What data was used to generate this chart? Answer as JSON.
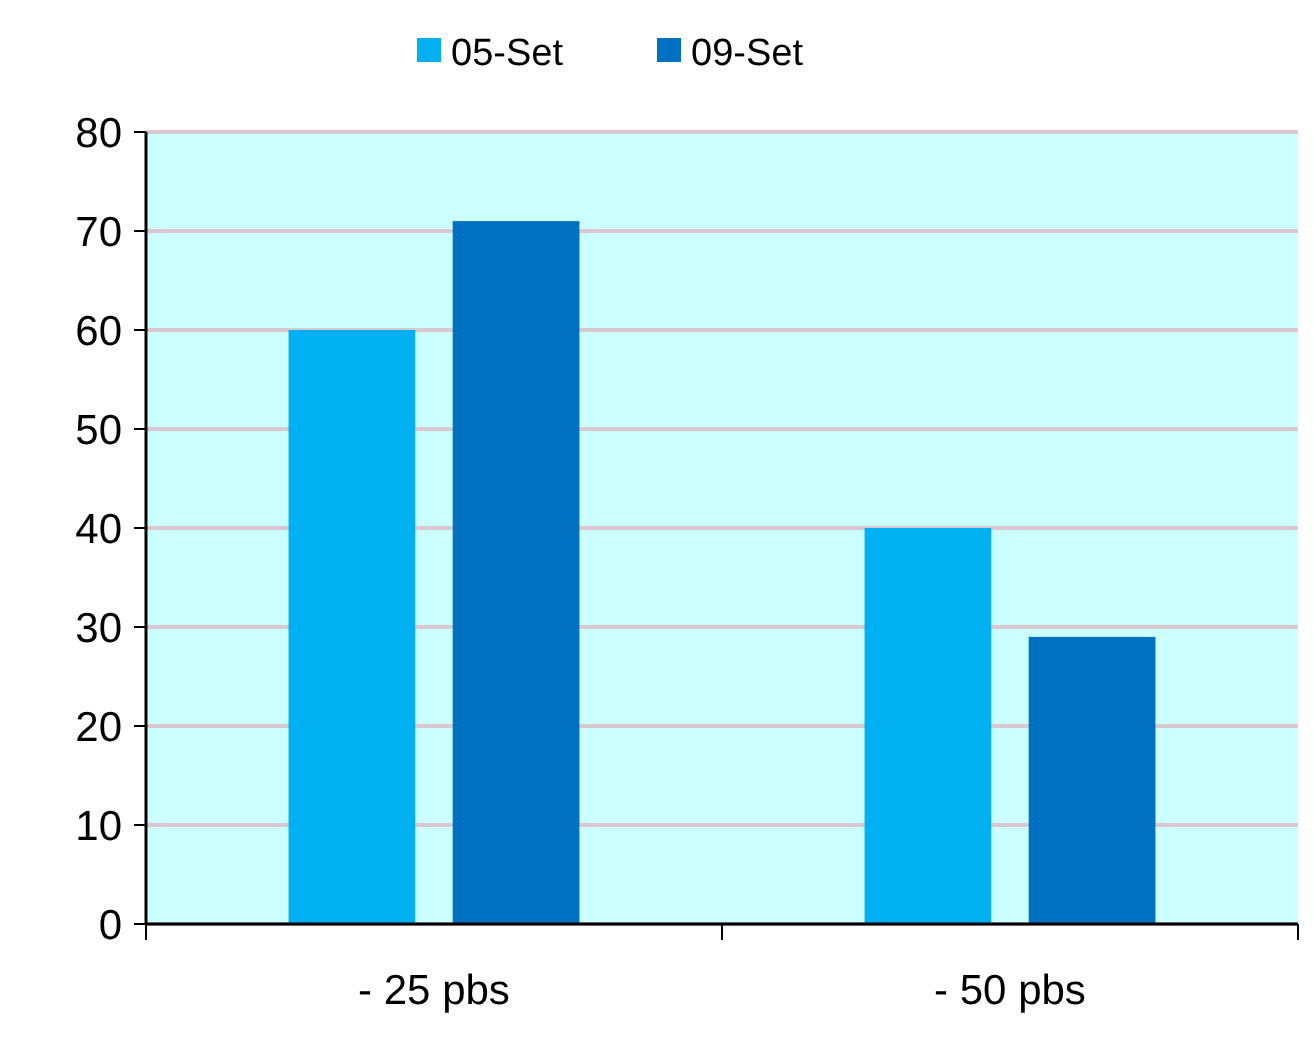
{
  "chart_data": {
    "type": "bar",
    "categories": [
      "- 25 pbs",
      "- 50 pbs"
    ],
    "series": [
      {
        "name": "05-Set",
        "color": "#00b0f0",
        "values": [
          60,
          40
        ]
      },
      {
        "name": "09-Set",
        "color": "#0070c0",
        "values": [
          71,
          29
        ]
      }
    ],
    "ylim": [
      0,
      80
    ],
    "yticks": [
      0,
      10,
      20,
      30,
      40,
      50,
      60,
      70,
      80
    ],
    "grid": "y",
    "legend": "top"
  }
}
